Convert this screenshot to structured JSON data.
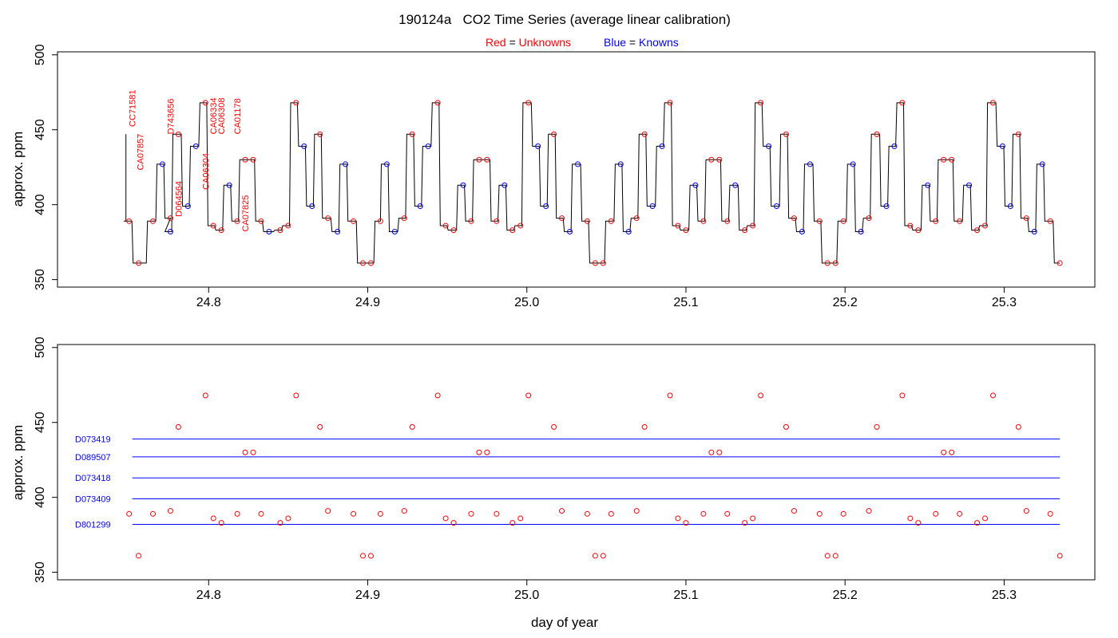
{
  "title": "190124a   CO2 Time Series (average linear calibration)",
  "legend": {
    "red_label": "Red",
    "red_rest": "Unknowns",
    "blue_label": "Blue",
    "blue_rest": "Knowns",
    "eq": "="
  },
  "colors": {
    "unknown": "#ff0000",
    "known": "#0000ff",
    "line": "#000000"
  },
  "chart_data": [
    {
      "type": "line",
      "title": "",
      "xlabel": "",
      "ylabel": "approx. ppm",
      "xlim": [
        24.705,
        25.357
      ],
      "ylim": [
        345,
        502
      ],
      "xticks": [
        "24.8",
        "24.9",
        "25.0",
        "25.1",
        "25.2",
        "25.3"
      ],
      "yticks": [
        "350",
        "400",
        "450",
        "500"
      ],
      "grid": false,
      "series": [
        {
          "name": "Unknowns",
          "marker": "open-circle",
          "points": [
            [
              24.75,
              389
            ],
            [
              24.756,
              361
            ],
            [
              24.765,
              389
            ],
            [
              24.776,
              391
            ],
            [
              24.781,
              447
            ],
            [
              24.798,
              468
            ],
            [
              24.803,
              386
            ],
            [
              24.808,
              383
            ],
            [
              24.818,
              389
            ],
            [
              24.823,
              430
            ],
            [
              24.828,
              430
            ],
            [
              24.833,
              389
            ],
            [
              24.845,
              383
            ],
            [
              24.85,
              386
            ],
            [
              24.855,
              468
            ],
            [
              24.87,
              447
            ],
            [
              24.875,
              391
            ],
            [
              24.891,
              389
            ],
            [
              24.897,
              361
            ],
            [
              24.902,
              361
            ],
            [
              24.908,
              389
            ],
            [
              24.923,
              391
            ],
            [
              24.928,
              447
            ],
            [
              24.944,
              468
            ],
            [
              24.949,
              386
            ],
            [
              24.954,
              383
            ],
            [
              24.965,
              389
            ],
            [
              24.97,
              430
            ],
            [
              24.975,
              430
            ],
            [
              24.981,
              389
            ],
            [
              24.991,
              383
            ],
            [
              24.996,
              386
            ],
            [
              25.001,
              468
            ],
            [
              25.017,
              447
            ],
            [
              25.022,
              391
            ],
            [
              25.038,
              389
            ],
            [
              25.043,
              361
            ],
            [
              25.048,
              361
            ],
            [
              25.053,
              389
            ],
            [
              25.069,
              391
            ],
            [
              25.074,
              447
            ],
            [
              25.09,
              468
            ],
            [
              25.095,
              386
            ],
            [
              25.1,
              383
            ],
            [
              25.111,
              389
            ],
            [
              25.116,
              430
            ],
            [
              25.121,
              430
            ],
            [
              25.126,
              389
            ],
            [
              25.137,
              383
            ],
            [
              25.142,
              386
            ],
            [
              25.147,
              468
            ],
            [
              25.163,
              447
            ],
            [
              25.168,
              391
            ],
            [
              25.184,
              389
            ],
            [
              25.189,
              361
            ],
            [
              25.194,
              361
            ],
            [
              25.199,
              389
            ],
            [
              25.215,
              391
            ],
            [
              25.22,
              447
            ],
            [
              25.236,
              468
            ],
            [
              25.241,
              386
            ],
            [
              25.246,
              383
            ],
            [
              25.257,
              389
            ],
            [
              25.262,
              430
            ],
            [
              25.267,
              430
            ],
            [
              25.272,
              389
            ],
            [
              25.283,
              383
            ],
            [
              25.288,
              386
            ],
            [
              25.293,
              468
            ],
            [
              25.309,
              447
            ],
            [
              25.314,
              391
            ],
            [
              25.329,
              389
            ],
            [
              25.335,
              361
            ]
          ]
        },
        {
          "name": "Knowns",
          "marker": "open-circle",
          "points": [
            [
              24.771,
              427
            ],
            [
              24.776,
              382
            ],
            [
              24.787,
              399
            ],
            [
              24.792,
              439
            ],
            [
              24.813,
              413
            ],
            [
              24.838,
              382
            ],
            [
              24.86,
              439
            ],
            [
              24.865,
              399
            ],
            [
              24.881,
              382
            ],
            [
              24.886,
              427
            ],
            [
              24.912,
              427
            ],
            [
              24.917,
              382
            ],
            [
              24.933,
              399
            ],
            [
              24.938,
              439
            ],
            [
              24.96,
              413
            ],
            [
              24.986,
              413
            ],
            [
              25.007,
              439
            ],
            [
              25.012,
              399
            ],
            [
              25.027,
              382
            ],
            [
              25.032,
              427
            ],
            [
              25.059,
              427
            ],
            [
              25.064,
              382
            ],
            [
              25.079,
              399
            ],
            [
              25.085,
              439
            ],
            [
              25.106,
              413
            ],
            [
              25.131,
              413
            ],
            [
              25.152,
              439
            ],
            [
              25.157,
              399
            ],
            [
              25.173,
              382
            ],
            [
              25.178,
              427
            ],
            [
              25.205,
              427
            ],
            [
              25.21,
              382
            ],
            [
              25.226,
              399
            ],
            [
              25.231,
              439
            ],
            [
              25.252,
              413
            ],
            [
              25.278,
              413
            ],
            [
              25.299,
              439
            ],
            [
              25.304,
              399
            ],
            [
              25.319,
              382
            ],
            [
              25.324,
              427
            ]
          ]
        }
      ],
      "annotations": [
        {
          "text": "CC71581",
          "x": 24.752
        },
        {
          "text": "CA07857",
          "x": 24.757
        },
        {
          "text": "D743656",
          "x": 24.776
        },
        {
          "text": "D064564",
          "x": 24.781
        },
        {
          "text": "CA06304",
          "x": 24.798
        },
        {
          "text": "CA06334",
          "x": 24.803
        },
        {
          "text": "CA06308",
          "x": 24.808
        },
        {
          "text": "CA01178",
          "x": 24.818
        },
        {
          "text": "CA07825",
          "x": 24.823
        }
      ]
    },
    {
      "type": "scatter",
      "title": "",
      "xlabel": "day of year",
      "ylabel": "approx. ppm",
      "xlim": [
        24.705,
        25.357
      ],
      "ylim": [
        345,
        502
      ],
      "xticks": [
        "24.8",
        "24.9",
        "25.0",
        "25.1",
        "25.2",
        "25.3"
      ],
      "yticks": [
        "350",
        "400",
        "450",
        "500"
      ],
      "grid": false,
      "series": [
        {
          "name": "Unknowns",
          "marker": "open-circle",
          "points_ref": "same x/y values as the Unknowns series of the upper panel"
        }
      ],
      "reference_lines": [
        {
          "name": "D073419",
          "y": 439
        },
        {
          "name": "D089507",
          "y": 427
        },
        {
          "name": "D073418",
          "y": 413
        },
        {
          "name": "D073409",
          "y": 399
        },
        {
          "name": "D801299",
          "y": 382
        }
      ],
      "reference_x_range": [
        24.752,
        25.335
      ]
    }
  ]
}
